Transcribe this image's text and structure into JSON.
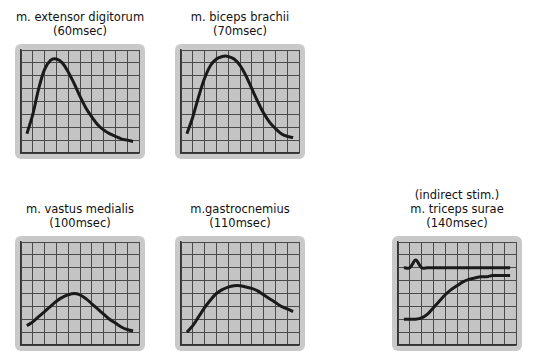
{
  "chart_data": [
    {
      "type": "line",
      "title": "m. extensor digitorum",
      "subtitle": "(60msec)",
      "x": [
        0.5,
        1,
        1.5,
        2,
        2.5,
        3,
        3.5,
        4,
        4.5,
        5,
        5.5,
        6,
        6.5,
        7,
        7.5,
        8,
        8.5,
        9,
        9.5
      ],
      "series": [
        {
          "color": "#1a1a1a",
          "values": [
            1.5,
            3.0,
            5.0,
            6.5,
            7.2,
            7.3,
            7.0,
            6.3,
            5.4,
            4.4,
            3.5,
            2.8,
            2.2,
            1.8,
            1.5,
            1.3,
            1.1,
            1.0,
            0.9
          ]
        }
      ],
      "xlim": [
        0,
        10
      ],
      "ylim": [
        0,
        8
      ],
      "xticks": [
        0,
        1,
        2,
        3,
        4,
        5,
        6,
        7,
        8,
        9,
        10
      ],
      "yticks": [
        0,
        1,
        2,
        3,
        4,
        5,
        6,
        7,
        8
      ],
      "grid": true,
      "tick_labels": false
    },
    {
      "type": "line",
      "title": "m. biceps brachii",
      "subtitle": "(70msec)",
      "x": [
        0.5,
        1,
        1.5,
        2,
        2.5,
        3,
        3.5,
        4,
        4.5,
        5,
        5.5,
        6,
        6.5,
        7,
        7.5,
        8,
        8.5,
        9,
        9.5
      ],
      "series": [
        {
          "color": "#1a1a1a",
          "values": [
            1.5,
            2.8,
            4.4,
            5.8,
            6.8,
            7.3,
            7.5,
            7.5,
            7.3,
            6.8,
            6.0,
            5.0,
            4.0,
            3.1,
            2.4,
            1.9,
            1.5,
            1.3,
            1.2
          ]
        }
      ],
      "xlim": [
        0,
        10
      ],
      "ylim": [
        0,
        8
      ],
      "xticks": [
        0,
        1,
        2,
        3,
        4,
        5,
        6,
        7,
        8,
        9,
        10
      ],
      "yticks": [
        0,
        1,
        2,
        3,
        4,
        5,
        6,
        7,
        8
      ],
      "grid": true,
      "tick_labels": false
    },
    {
      "type": "line",
      "title": "m. vastus medialis",
      "subtitle": "(100msec)",
      "x": [
        0.5,
        1,
        1.5,
        2,
        2.5,
        3,
        3.5,
        4,
        4.5,
        5,
        5.5,
        6,
        6.5,
        7,
        7.5,
        8,
        8.5,
        9,
        9.5
      ],
      "series": [
        {
          "color": "#1a1a1a",
          "values": [
            1.5,
            1.8,
            2.2,
            2.6,
            3.0,
            3.4,
            3.7,
            3.9,
            4.0,
            3.9,
            3.6,
            3.2,
            2.8,
            2.4,
            2.0,
            1.7,
            1.4,
            1.2,
            1.1
          ]
        }
      ],
      "xlim": [
        0,
        10
      ],
      "ylim": [
        0,
        8
      ],
      "xticks": [
        0,
        1,
        2,
        3,
        4,
        5,
        6,
        7,
        8,
        9,
        10
      ],
      "yticks": [
        0,
        1,
        2,
        3,
        4,
        5,
        6,
        7,
        8
      ],
      "grid": true,
      "tick_labels": false
    },
    {
      "type": "line",
      "title": "m.gastrocnemius",
      "subtitle": "(110msec)",
      "x": [
        0.5,
        1,
        1.5,
        2,
        2.5,
        3,
        3.5,
        4,
        4.5,
        5,
        5.5,
        6,
        6.5,
        7,
        7.5,
        8,
        8.5,
        9,
        9.5
      ],
      "series": [
        {
          "color": "#1a1a1a",
          "values": [
            1.0,
            1.5,
            2.2,
            2.9,
            3.5,
            4.0,
            4.3,
            4.5,
            4.6,
            4.6,
            4.5,
            4.4,
            4.2,
            3.9,
            3.6,
            3.3,
            3.0,
            2.8,
            2.6
          ]
        }
      ],
      "xlim": [
        0,
        10
      ],
      "ylim": [
        0,
        8
      ],
      "xticks": [
        0,
        1,
        2,
        3,
        4,
        5,
        6,
        7,
        8,
        9,
        10
      ],
      "yticks": [
        0,
        1,
        2,
        3,
        4,
        5,
        6,
        7,
        8
      ],
      "grid": true,
      "tick_labels": false
    },
    {
      "type": "line",
      "annotation": "(indirect stim.)",
      "title": "m. triceps surae",
      "subtitle": "(140msec)",
      "x": [
        0.5,
        1,
        1.5,
        2,
        2.5,
        3,
        3.5,
        4,
        4.5,
        5,
        5.5,
        6,
        6.5,
        7,
        7.5,
        8,
        8.5,
        9,
        9.5
      ],
      "series": [
        {
          "color": "#1a1a1a",
          "values": [
            6.0,
            6.0,
            6.6,
            6.0,
            6.0,
            6.0,
            6.0,
            6.0,
            6.0,
            6.0,
            6.0,
            6.0,
            6.0,
            6.0,
            6.0,
            6.0,
            6.0,
            6.0,
            6.0
          ]
        },
        {
          "color": "#1a1a1a",
          "values": [
            2.0,
            2.0,
            2.0,
            2.1,
            2.4,
            2.9,
            3.4,
            3.9,
            4.3,
            4.6,
            4.9,
            5.1,
            5.2,
            5.3,
            5.3,
            5.4,
            5.4,
            5.4,
            5.4
          ]
        }
      ],
      "xlim": [
        0,
        10
      ],
      "ylim": [
        0,
        8
      ],
      "xticks": [
        0,
        1,
        2,
        3,
        4,
        5,
        6,
        7,
        8,
        9,
        10
      ],
      "yticks": [
        0,
        1,
        2,
        3,
        4,
        5,
        6,
        7,
        8
      ],
      "grid": true,
      "tick_labels": false
    }
  ]
}
